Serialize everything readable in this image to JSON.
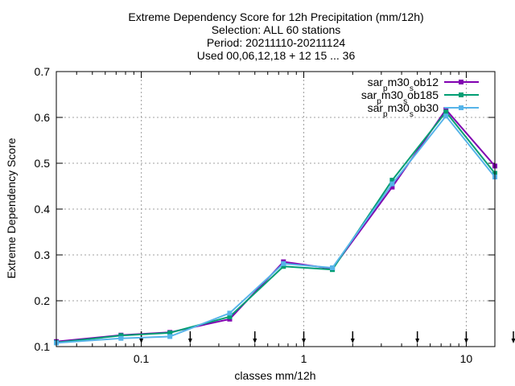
{
  "chart_data": {
    "type": "line",
    "title": [
      "Extreme Dependency Score  for 12h Precipitation (mm/12h)",
      "Selection: ALL     60 stations",
      "Period: 20211110-20211124",
      "Used 00,06,12,18 + 12 15 ... 36"
    ],
    "xlabel": "classes mm/12h",
    "ylabel": "Extreme Dependency Score",
    "x_scale": "log",
    "xlim": [
      0.03,
      15
    ],
    "ylim": [
      0.1,
      0.7
    ],
    "x_ticks": [
      {
        "value": 0.1,
        "label": "0.1"
      },
      {
        "value": 1,
        "label": "1"
      },
      {
        "value": 10,
        "label": "10"
      }
    ],
    "y_ticks": [
      {
        "value": 0.1,
        "label": "0.1"
      },
      {
        "value": 0.2,
        "label": "0.2"
      },
      {
        "value": 0.3,
        "label": "0.3"
      },
      {
        "value": 0.4,
        "label": "0.4"
      },
      {
        "value": 0.5,
        "label": "0.5"
      },
      {
        "value": 0.6,
        "label": "0.6"
      },
      {
        "value": 0.7,
        "label": "0.7"
      }
    ],
    "grid": true,
    "legend_position": "top-right",
    "class_markers_x": [
      0.1,
      0.2,
      0.5,
      1,
      2,
      5,
      10,
      20
    ],
    "x": [
      0.03,
      0.075,
      0.15,
      0.35,
      0.75,
      1.5,
      3.5,
      7.5,
      15
    ],
    "series": [
      {
        "name": "sar_pm30_sob12",
        "color": "#8000b0",
        "values": [
          0.111,
          0.125,
          0.131,
          0.16,
          0.285,
          0.27,
          0.448,
          0.617,
          0.494
        ]
      },
      {
        "name": "sar_pm30_sob185",
        "color": "#009e73",
        "values": [
          0.109,
          0.124,
          0.13,
          0.165,
          0.275,
          0.268,
          0.463,
          0.612,
          0.478
        ]
      },
      {
        "name": "sar_pm30_sob30",
        "color": "#56b4e9",
        "values": [
          0.108,
          0.118,
          0.122,
          0.173,
          0.281,
          0.272,
          0.455,
          0.603,
          0.47
        ]
      }
    ]
  }
}
